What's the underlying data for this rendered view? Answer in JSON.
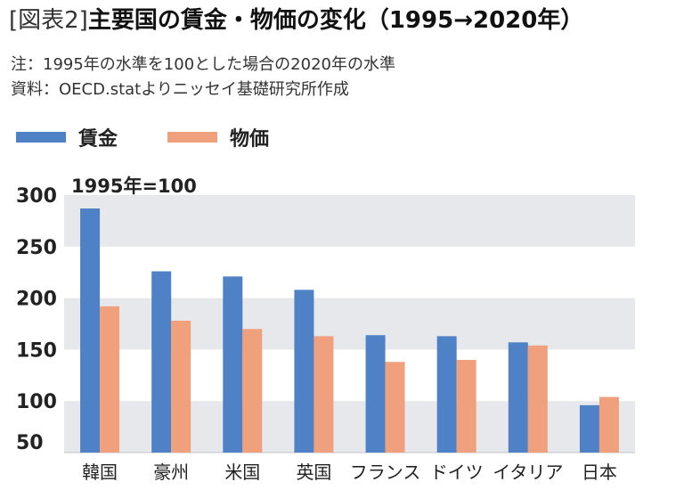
{
  "title": {
    "tag": "[図表2]",
    "main": "主要国の賃金・物価の変化（1995→2020年）"
  },
  "notes": {
    "line1": "注：1995年の水準を100とした場合の2020年の水準",
    "line2": "資料：OECD.statよりニッセイ基礎研究所作成"
  },
  "chart_data": {
    "type": "bar",
    "categories": [
      "韓国",
      "豪州",
      "米国",
      "英国",
      "フランス",
      "ドイツ",
      "イタリア",
      "日本"
    ],
    "series": [
      {
        "name": "賃金",
        "color": "#4f81c7",
        "values": [
          287,
          226,
          221,
          208,
          164,
          163,
          157,
          96
        ]
      },
      {
        "name": "物価",
        "color": "#f0a07c",
        "values": [
          192,
          178,
          170,
          163,
          138,
          140,
          154,
          104
        ]
      }
    ],
    "y_axis_note": "1995年=100",
    "yticks": [
      50,
      100,
      150,
      200,
      250,
      300
    ],
    "ylim": [
      50,
      300
    ],
    "grid": "alternating bands",
    "legend_position": "top-left"
  }
}
